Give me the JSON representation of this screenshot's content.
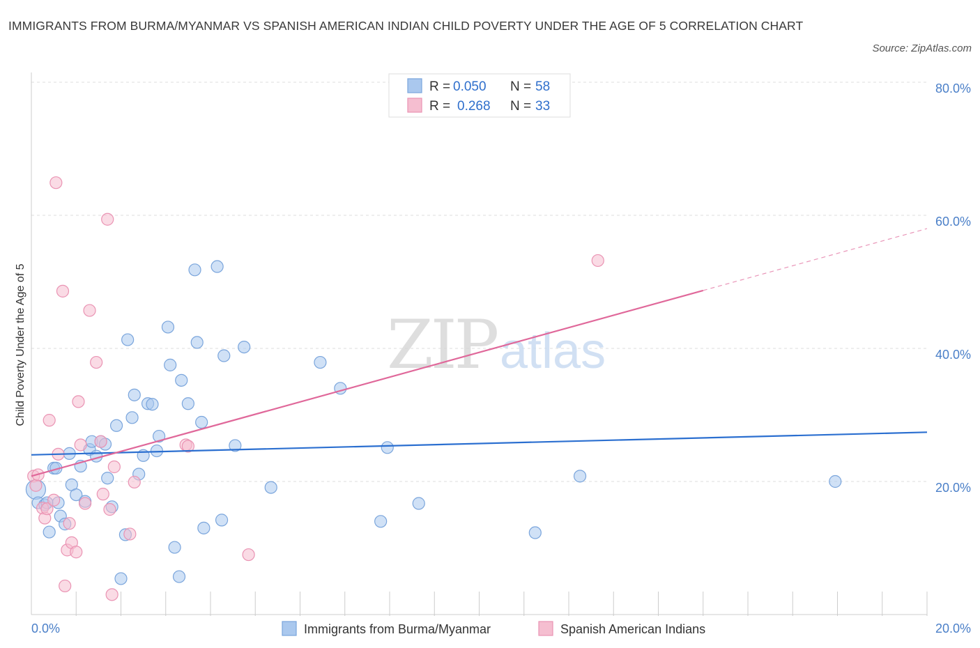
{
  "title": "IMMIGRANTS FROM BURMA/MYANMAR VS SPANISH AMERICAN INDIAN CHILD POVERTY UNDER THE AGE OF 5 CORRELATION CHART",
  "source": "Source: ZipAtlas.com",
  "watermark": {
    "zip": "ZIP",
    "atlas": "atlas"
  },
  "colors": {
    "blue_fill": "#aac8ee",
    "blue_stroke": "#7aa5dc",
    "blue_line": "#2b6fd0",
    "pink_fill": "#f5bed0",
    "pink_stroke": "#ea93b3",
    "pink_line": "#e0689a",
    "tick_text": "#4a7fc8",
    "grid": "#dddddd"
  },
  "legend": {
    "rows": [
      {
        "r_label": "R =",
        "r_value": "0.050",
        "n_label": "N =",
        "n_value": "58"
      },
      {
        "r_label": "R =",
        "r_value": "0.268",
        "n_label": "N =",
        "n_value": "33"
      }
    ]
  },
  "chart_data": {
    "type": "scatter",
    "xlabel": "",
    "ylabel": "Child Poverty Under the Age of 5",
    "xlim": [
      0,
      20
    ],
    "ylim": [
      0,
      80
    ],
    "x_tick_labels": [
      {
        "value": 0,
        "label": "0.0%"
      },
      {
        "value": 20,
        "label": "20.0%"
      }
    ],
    "y_tick_labels": [
      {
        "value": 20,
        "label": "20.0%"
      },
      {
        "value": 40,
        "label": "40.0%"
      },
      {
        "value": 60,
        "label": "60.0%"
      },
      {
        "value": 80,
        "label": "80.0%"
      }
    ],
    "grid": true,
    "legend_position": "top-center",
    "series": [
      {
        "name": "Immigrants from Burma/Myanmar",
        "color": "blue",
        "trend": {
          "x": [
            0,
            20
          ],
          "y": [
            24.0,
            27.4
          ],
          "dashed_from": null
        },
        "points": [
          [
            0.1,
            18.8
          ],
          [
            0.15,
            16.8
          ],
          [
            0.3,
            16.5
          ],
          [
            0.35,
            16.8
          ],
          [
            0.4,
            12.4
          ],
          [
            0.5,
            22.0
          ],
          [
            0.55,
            22.0
          ],
          [
            0.65,
            14.8
          ],
          [
            0.75,
            13.6
          ],
          [
            0.85,
            24.2
          ],
          [
            0.9,
            19.5
          ],
          [
            1.0,
            18.0
          ],
          [
            1.1,
            22.3
          ],
          [
            1.2,
            17.0
          ],
          [
            1.3,
            24.8
          ],
          [
            1.35,
            26.0
          ],
          [
            1.45,
            23.8
          ],
          [
            1.55,
            26.0
          ],
          [
            1.65,
            25.6
          ],
          [
            1.7,
            20.5
          ],
          [
            1.8,
            16.2
          ],
          [
            1.9,
            28.4
          ],
          [
            2.0,
            5.4
          ],
          [
            2.1,
            12.0
          ],
          [
            2.15,
            41.3
          ],
          [
            2.25,
            29.6
          ],
          [
            2.3,
            33.0
          ],
          [
            2.4,
            21.1
          ],
          [
            2.5,
            23.9
          ],
          [
            2.6,
            31.7
          ],
          [
            2.7,
            31.6
          ],
          [
            2.8,
            24.6
          ],
          [
            2.85,
            26.8
          ],
          [
            3.05,
            43.2
          ],
          [
            3.1,
            37.5
          ],
          [
            3.2,
            10.1
          ],
          [
            3.3,
            5.7
          ],
          [
            3.35,
            35.2
          ],
          [
            3.5,
            31.7
          ],
          [
            3.65,
            51.8
          ],
          [
            3.7,
            40.9
          ],
          [
            3.8,
            28.9
          ],
          [
            3.85,
            13.0
          ],
          [
            4.15,
            52.3
          ],
          [
            4.25,
            14.2
          ],
          [
            4.3,
            38.9
          ],
          [
            4.55,
            25.4
          ],
          [
            4.75,
            40.2
          ],
          [
            5.35,
            19.1
          ],
          [
            6.45,
            37.9
          ],
          [
            6.9,
            34.0
          ],
          [
            7.8,
            14.0
          ],
          [
            7.95,
            25.1
          ],
          [
            8.65,
            16.7
          ],
          [
            11.25,
            12.3
          ],
          [
            12.25,
            20.8
          ],
          [
            17.95,
            20.0
          ],
          [
            0.6,
            16.8
          ]
        ]
      },
      {
        "name": "Spanish American Indians",
        "color": "pink",
        "trend": {
          "x": [
            0,
            20
          ],
          "y": [
            20.8,
            58.0
          ],
          "dashed_from": 15.0
        },
        "points": [
          [
            0.05,
            20.8
          ],
          [
            0.1,
            19.4
          ],
          [
            0.15,
            21.0
          ],
          [
            0.25,
            16.0
          ],
          [
            0.3,
            14.5
          ],
          [
            0.35,
            15.9
          ],
          [
            0.4,
            29.2
          ],
          [
            0.5,
            17.2
          ],
          [
            0.55,
            64.9
          ],
          [
            0.6,
            24.1
          ],
          [
            0.7,
            48.6
          ],
          [
            0.75,
            4.3
          ],
          [
            0.8,
            9.7
          ],
          [
            0.85,
            13.7
          ],
          [
            0.9,
            10.8
          ],
          [
            1.0,
            9.4
          ],
          [
            1.05,
            32.0
          ],
          [
            1.1,
            25.5
          ],
          [
            1.2,
            16.7
          ],
          [
            1.3,
            45.7
          ],
          [
            1.45,
            37.9
          ],
          [
            1.55,
            26.0
          ],
          [
            1.6,
            18.1
          ],
          [
            1.7,
            59.4
          ],
          [
            1.75,
            15.8
          ],
          [
            1.8,
            3.0
          ],
          [
            1.85,
            22.2
          ],
          [
            2.2,
            12.1
          ],
          [
            2.3,
            19.9
          ],
          [
            3.45,
            25.5
          ],
          [
            3.5,
            25.3
          ],
          [
            4.85,
            9.0
          ],
          [
            12.65,
            53.2
          ]
        ]
      }
    ]
  }
}
